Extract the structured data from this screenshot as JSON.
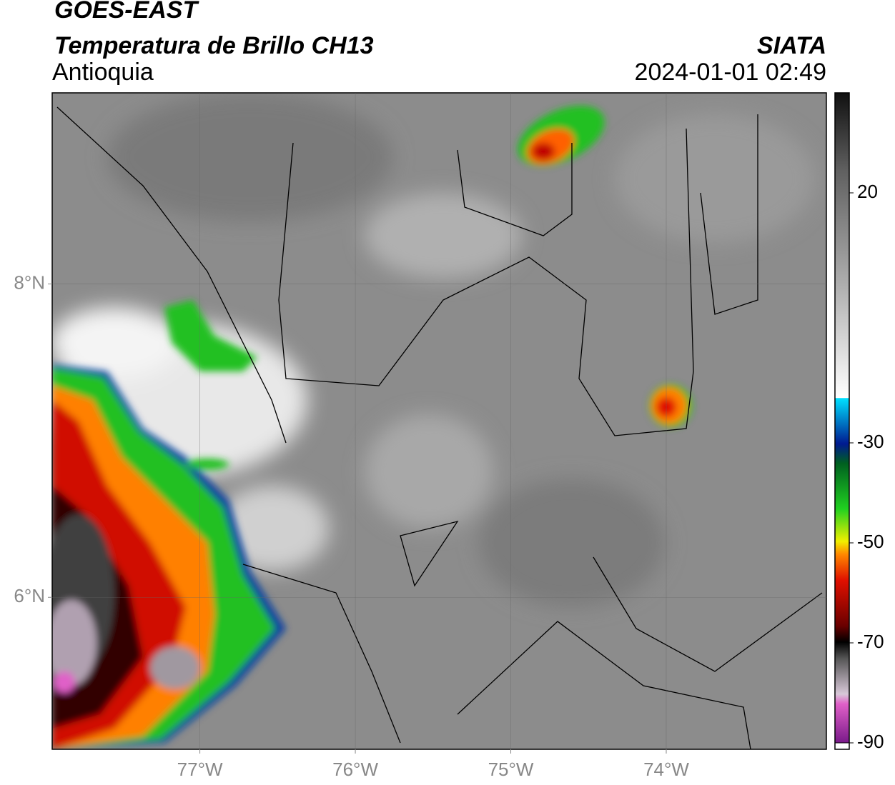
{
  "header": {
    "satellite": "GOES-EAST",
    "product": "Temperatura de Brillo CH13",
    "region": "Antioquia",
    "agency": "SIATA",
    "datetime": "2024-01-01 02:49"
  },
  "map": {
    "xlim": [
      -77.95,
      -72.97
    ],
    "ylim": [
      5.03,
      9.22
    ],
    "xticks": [
      {
        "value": -77,
        "label": "77°W"
      },
      {
        "value": -76,
        "label": "76°W"
      },
      {
        "value": -75,
        "label": "75°W"
      },
      {
        "value": -74,
        "label": "74°W"
      }
    ],
    "yticks": [
      {
        "value": 8,
        "label": "8°N"
      },
      {
        "value": 6,
        "label": "6°N"
      }
    ],
    "grid": true
  },
  "colorbar": {
    "lim": [
      -90,
      40
    ],
    "ticks": [
      20,
      -30,
      -50,
      -70,
      -90
    ]
  }
}
